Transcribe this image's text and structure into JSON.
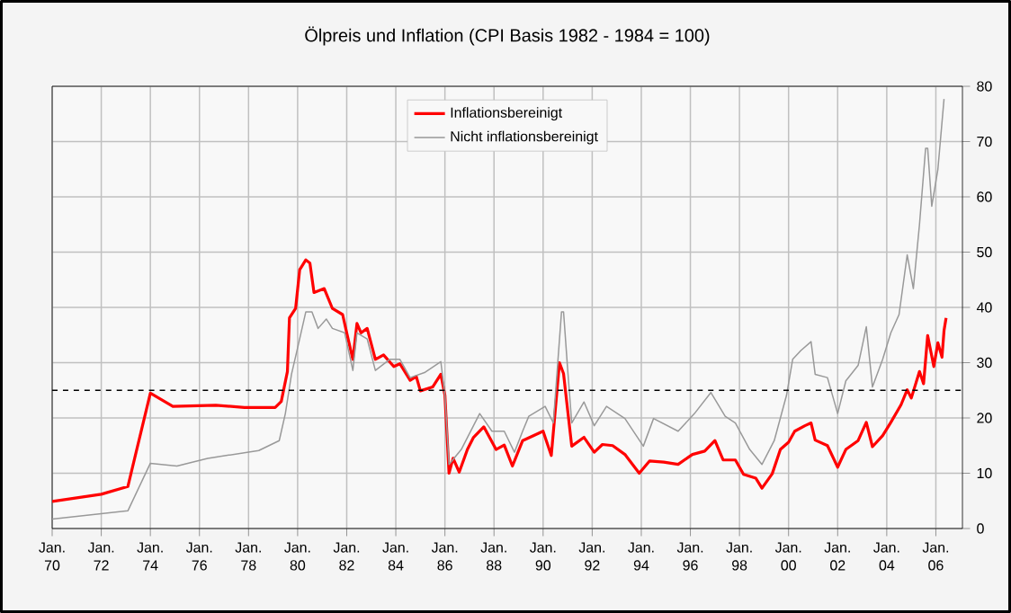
{
  "chart_data": {
    "type": "line",
    "title": "Ölpreis und Inflation (CPI Basis 1982 - 1984 = 100)",
    "xlim": [
      "1970-01",
      "2007-02"
    ],
    "ylim": [
      0,
      80
    ],
    "xticks": [
      {
        "value": "1970-01",
        "label": "Jan. 70"
      },
      {
        "value": "1972-01",
        "label": "Jan. 72"
      },
      {
        "value": "1974-01",
        "label": "Jan. 74"
      },
      {
        "value": "1976-01",
        "label": "Jan. 76"
      },
      {
        "value": "1978-01",
        "label": "Jan. 78"
      },
      {
        "value": "1980-01",
        "label": "Jan. 80"
      },
      {
        "value": "1982-01",
        "label": "Jan. 82"
      },
      {
        "value": "1984-01",
        "label": "Jan. 84"
      },
      {
        "value": "1986-01",
        "label": "Jan. 86"
      },
      {
        "value": "1988-01",
        "label": "Jan. 88"
      },
      {
        "value": "1990-01",
        "label": "Jan. 90"
      },
      {
        "value": "1992-01",
        "label": "Jan. 92"
      },
      {
        "value": "1994-01",
        "label": "Jan. 94"
      },
      {
        "value": "1996-01",
        "label": "Jan. 96"
      },
      {
        "value": "1998-01",
        "label": "Jan. 98"
      },
      {
        "value": "2000-01",
        "label": "Jan. 00"
      },
      {
        "value": "2002-01",
        "label": "Jan. 02"
      },
      {
        "value": "2004-01",
        "label": "Jan. 04"
      },
      {
        "value": "2006-01",
        "label": "Jan. 06"
      }
    ],
    "yticks": [
      0,
      10,
      20,
      30,
      40,
      50,
      60,
      70,
      80
    ],
    "grid": true,
    "legend": "top",
    "line_style": "solid",
    "marker": "none",
    "ref_lines": [
      {
        "axis": "y",
        "value": 25,
        "color": "#000000",
        "line_style": "dashed"
      }
    ],
    "series": [
      {
        "name": "Inflationsbereinigt",
        "color": "#ff0000",
        "x": [
          "1970-01",
          "1972-01",
          "1973-02",
          "1974-01",
          "1974-12",
          "1976-09",
          "1977-11",
          "1979-02",
          "1979-05",
          "1979-08",
          "1979-09",
          "1979-12",
          "1980-02",
          "1980-05",
          "1980-07",
          "1980-09",
          "1981-02",
          "1981-06",
          "1981-11",
          "1982-01",
          "1982-04",
          "1982-06",
          "1982-08",
          "1982-11",
          "1983-03",
          "1983-07",
          "1983-12",
          "1984-03",
          "1984-08",
          "1984-11",
          "1985-01",
          "1985-07",
          "1985-11",
          "1986-01",
          "1986-03",
          "1986-05",
          "1986-08",
          "1986-12",
          "1987-03",
          "1987-08",
          "1988-02",
          "1988-06",
          "1988-10",
          "1989-03",
          "1990-01",
          "1990-05",
          "1990-09",
          "1990-11",
          "1991-01",
          "1991-03",
          "1991-09",
          "1992-02",
          "1992-06",
          "1992-11",
          "1993-05",
          "1993-12",
          "1994-05",
          "1994-12",
          "1995-07",
          "1996-02",
          "1996-08",
          "1997-01",
          "1997-05",
          "1997-11",
          "1998-03",
          "1998-09",
          "1998-12",
          "1999-05",
          "1999-09",
          "2000-01",
          "2000-04",
          "2000-09",
          "2000-12",
          "2001-02",
          "2001-08",
          "2002-01",
          "2002-05",
          "2002-11",
          "2003-03",
          "2003-06",
          "2003-11",
          "2004-03",
          "2004-08",
          "2004-11",
          "2005-01",
          "2005-05",
          "2005-07",
          "2005-09",
          "2005-12",
          "2006-02",
          "2006-04",
          "2006-05",
          "2006-06"
        ],
        "values": [
          4.9,
          6.2,
          7.6,
          24.5,
          22.1,
          22.3,
          21.9,
          21.9,
          23,
          28.4,
          38.1,
          39.8,
          46.8,
          48.6,
          48,
          42.7,
          43.4,
          39.8,
          38.7,
          35.4,
          30.6,
          37.1,
          35.4,
          36.2,
          30.6,
          31.4,
          29.3,
          29.8,
          26.8,
          27.5,
          24.9,
          25.6,
          27.9,
          24.1,
          10.0,
          12.7,
          10.2,
          14.3,
          16.5,
          18.4,
          14.3,
          15.1,
          11.3,
          15.9,
          17.6,
          13.2,
          30.0,
          28.0,
          21.4,
          14.9,
          16.5,
          13.8,
          15.2,
          15,
          13.4,
          10.0,
          12.2,
          12,
          11.6,
          13.4,
          14,
          15.9,
          12.4,
          12.4,
          9.8,
          9.1,
          7.3,
          9.9,
          14.3,
          15.6,
          17.6,
          18.6,
          19.1,
          16,
          15,
          11.1,
          14.3,
          15.9,
          19.2,
          14.8,
          16.8,
          19.2,
          22.4,
          25.1,
          23.6,
          28.4,
          26.2,
          34.9,
          29.3,
          33.6,
          31,
          35.8,
          38.1
        ]
      },
      {
        "name": "Nicht inflationsbereinigt",
        "color": "#999999",
        "x": [
          "1970-01",
          "1972-01",
          "1973-02",
          "1974-01",
          "1975-02",
          "1976-05",
          "1977-02",
          "1978-06",
          "1979-04",
          "1979-07",
          "1979-10",
          "1980-01",
          "1980-05",
          "1980-08",
          "1980-11",
          "1981-03",
          "1981-06",
          "1981-12",
          "1982-04",
          "1982-06",
          "1982-11",
          "1983-03",
          "1983-10",
          "1984-03",
          "1984-08",
          "1985-03",
          "1985-11",
          "1986-01",
          "1986-03",
          "1986-09",
          "1987-06",
          "1987-12",
          "1988-06",
          "1988-11",
          "1989-03",
          "1989-06",
          "1990-02",
          "1990-06",
          "1990-10",
          "1990-11",
          "1991-01",
          "1991-03",
          "1991-09",
          "1992-02",
          "1992-08",
          "1993-05",
          "1994-02",
          "1994-07",
          "1995-07",
          "1996-03",
          "1996-11",
          "1997-06",
          "1997-11",
          "1998-06",
          "1998-12",
          "1999-06",
          "1999-12",
          "2000-03",
          "2000-07",
          "2000-12",
          "2001-02",
          "2001-08",
          "2002-01",
          "2002-05",
          "2002-11",
          "2003-03",
          "2003-06",
          "2003-11",
          "2004-03",
          "2004-07",
          "2004-11",
          "2005-02",
          "2005-05",
          "2005-08",
          "2005-09",
          "2005-11",
          "2006-02",
          "2006-05"
        ],
        "values": [
          1.7,
          2.7,
          3.2,
          11.8,
          11.3,
          12.7,
          13.2,
          14.1,
          15.9,
          20.8,
          27.9,
          32.7,
          39.2,
          39.2,
          36.2,
          37.9,
          36.2,
          35.4,
          28.6,
          35.4,
          34.3,
          28.6,
          30.6,
          30.6,
          27.3,
          28.2,
          30.2,
          24.1,
          11.6,
          14.3,
          20.8,
          17.6,
          17.6,
          13.8,
          17.6,
          20.3,
          22.1,
          19.1,
          39.2,
          39.2,
          28.8,
          19.1,
          22.9,
          18.6,
          22.1,
          19.9,
          14.9,
          19.9,
          17.6,
          20.8,
          24.6,
          20.3,
          19.1,
          14.3,
          11.6,
          15.9,
          24.1,
          30.6,
          32.2,
          33.8,
          27.9,
          27.3,
          20.8,
          26.7,
          29.5,
          36.5,
          25.6,
          30.6,
          35.4,
          38.7,
          49.5,
          43.4,
          55,
          68.8,
          68.8,
          58.3,
          65,
          77.7
        ]
      }
    ]
  }
}
